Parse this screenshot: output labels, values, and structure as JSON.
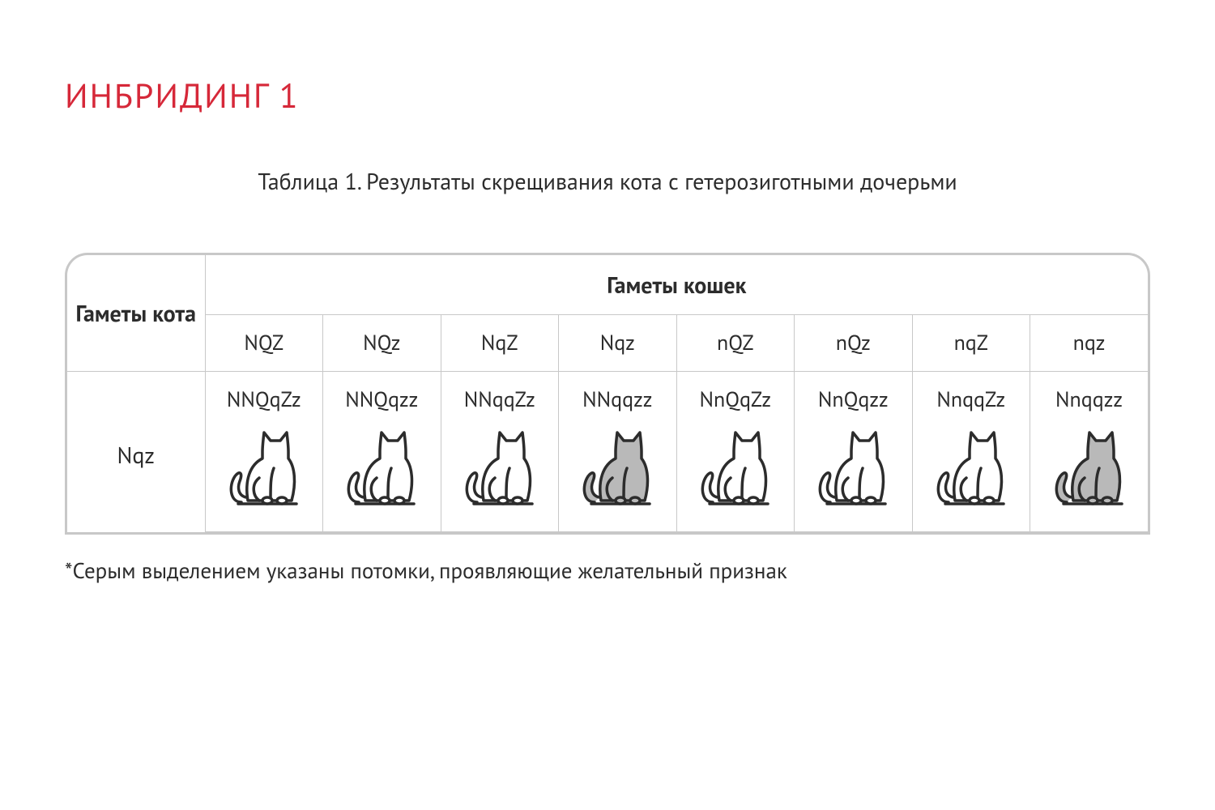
{
  "heading": "ИНБРИДИНГ 1",
  "caption": "Таблица 1. Результаты скрещивания кота с гетерозиготными дочерьми",
  "table": {
    "row_header_label": "Гаметы кота",
    "col_header_label": "Гаметы кошек",
    "col_gametes": [
      "NQZ",
      "NQz",
      "NqZ",
      "Nqz",
      "nQZ",
      "nQz",
      "nqZ",
      "nqz"
    ],
    "row_gamete": "Nqz",
    "offspring": [
      {
        "genotype": "NNQqZz",
        "highlighted": false
      },
      {
        "genotype": "NNQqzz",
        "highlighted": false
      },
      {
        "genotype": "NNqqZz",
        "highlighted": false
      },
      {
        "genotype": "NNqqzz",
        "highlighted": true
      },
      {
        "genotype": "NnQqZz",
        "highlighted": false
      },
      {
        "genotype": "NnQqzz",
        "highlighted": false
      },
      {
        "genotype": "NnqqZz",
        "highlighted": false
      },
      {
        "genotype": "Nnqqzz",
        "highlighted": true
      }
    ]
  },
  "footnote": "*Серым выделением указаны потомки, проявляющие желательный признак",
  "style": {
    "heading_color": "#d62839",
    "text_color": "#2c2c2c",
    "border_color": "#c8c8c8",
    "cat_outline_color": "#2c2c2c",
    "cat_outline_width": 3.5,
    "cat_fill_plain": "#ffffff",
    "cat_fill_highlight": "#b9b9b9",
    "background": "#ffffff",
    "heading_fontsize": 42,
    "caption_fontsize": 28,
    "cell_fontsize": 26,
    "footnote_fontsize": 27
  }
}
